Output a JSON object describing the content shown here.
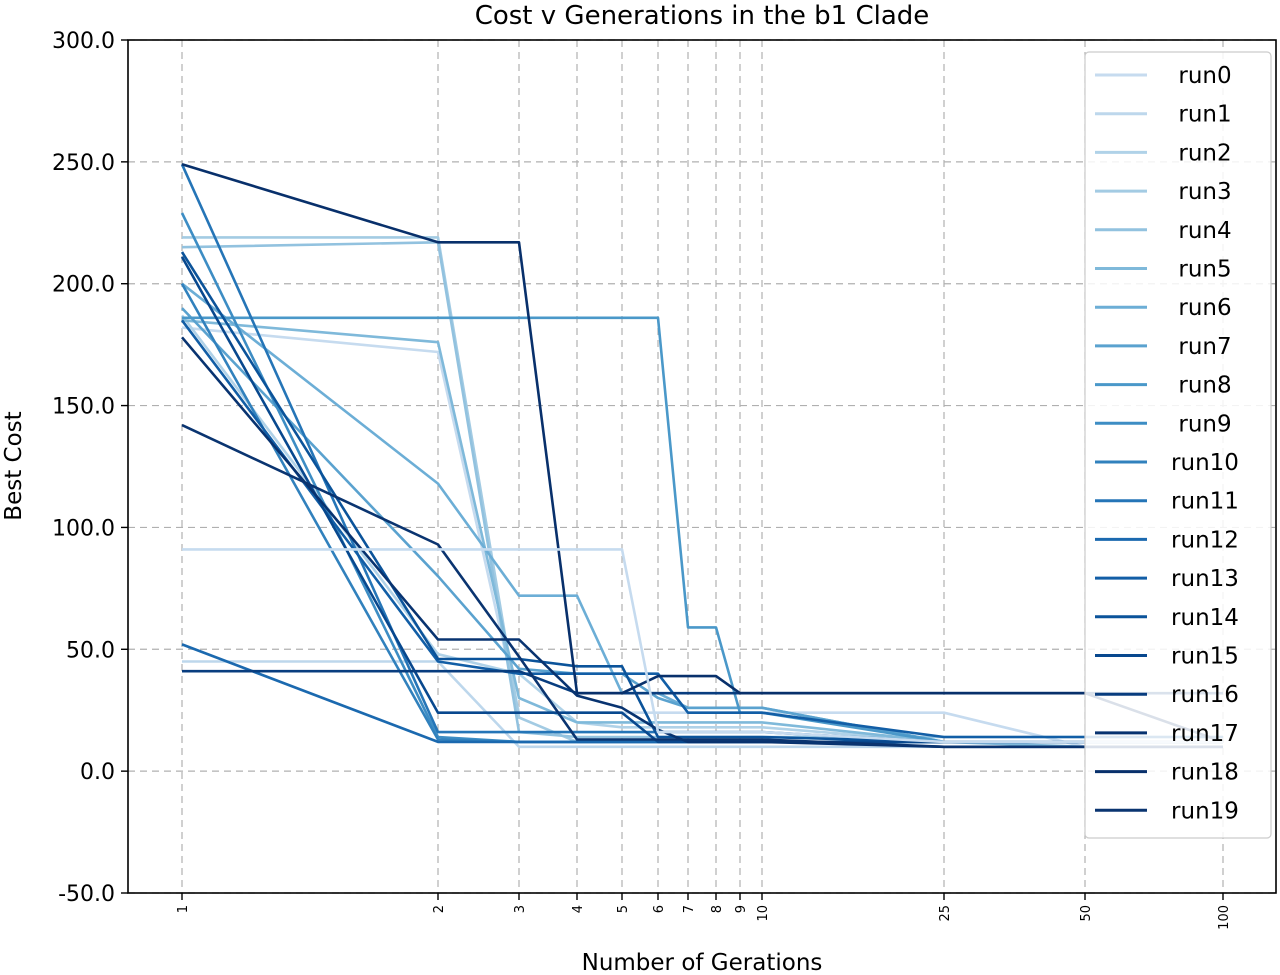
{
  "chart_data": {
    "type": "line",
    "title": "Cost v Generations in the b1 Clade",
    "xlabel": "Number of Gerations",
    "ylabel": "Best Cost",
    "x": [
      1,
      2,
      3,
      4,
      5,
      6,
      7,
      8,
      9,
      10,
      25,
      50,
      100
    ],
    "x_tick_labels": [
      "1",
      "2",
      "3",
      "4",
      "5",
      "6",
      "7",
      "8",
      "9",
      "10",
      "25",
      "50",
      "100"
    ],
    "x_scale": "categorical-index",
    "ylim": [
      -50,
      300
    ],
    "y_ticks": [
      -50,
      0,
      50,
      100,
      150,
      200,
      250,
      300
    ],
    "y_tick_labels": [
      "-50.0",
      "0.0",
      "50.0",
      "100.0",
      "150.0",
      "200.0",
      "250.0",
      "300.0"
    ],
    "grid": true,
    "legend_position": "top-right",
    "colormap": "Blues",
    "colors": [
      "#c6dbef",
      "#bdd7ec",
      "#b0d2e8",
      "#a3cbe3",
      "#92c2df",
      "#7fb9da",
      "#6caed6",
      "#5aa2cf",
      "#4a98c9",
      "#3d8dc4",
      "#3181bd",
      "#2575b7",
      "#1b69af",
      "#125ea6",
      "#0b539a",
      "#08488e",
      "#083d7f",
      "#083370",
      "#08306b",
      "#0a3470"
    ],
    "series": [
      {
        "name": "run0",
        "values": [
          182,
          172,
          24,
          24,
          24,
          24,
          24,
          24,
          24,
          24,
          24,
          10,
          10
        ]
      },
      {
        "name": "run1",
        "values": [
          45,
          45,
          10,
          10,
          10,
          10,
          10,
          10,
          10,
          10,
          10,
          10,
          10
        ]
      },
      {
        "name": "run2",
        "values": [
          187,
          48,
          40,
          20,
          18,
          18,
          18,
          18,
          18,
          18,
          12,
          12,
          12
        ]
      },
      {
        "name": "run3",
        "values": [
          219,
          219,
          22,
          12,
          12,
          12,
          12,
          12,
          12,
          12,
          12,
          12,
          12
        ]
      },
      {
        "name": "run4",
        "values": [
          215,
          217,
          16,
          14,
          14,
          14,
          14,
          14,
          14,
          14,
          14,
          14,
          14
        ]
      },
      {
        "name": "run5",
        "values": [
          185,
          176,
          30,
          20,
          20,
          20,
          20,
          20,
          20,
          20,
          12,
          10,
          10
        ]
      },
      {
        "name": "run6",
        "values": [
          200,
          118,
          72,
          72,
          32,
          32,
          26,
          26,
          26,
          26,
          12,
          12,
          12
        ]
      },
      {
        "name": "run7",
        "values": [
          190,
          80,
          42,
          40,
          40,
          30,
          26,
          26,
          26,
          26,
          12,
          12,
          12
        ]
      },
      {
        "name": "run8",
        "values": [
          186,
          186,
          186,
          186,
          186,
          186,
          59,
          59,
          24,
          24,
          12,
          12,
          12
        ]
      },
      {
        "name": "run9",
        "values": [
          229,
          14,
          12,
          12,
          12,
          12,
          12,
          12,
          12,
          12,
          12,
          12,
          12
        ]
      },
      {
        "name": "run10",
        "values": [
          200,
          13,
          12,
          12,
          12,
          12,
          12,
          12,
          12,
          12,
          12,
          12,
          12
        ]
      },
      {
        "name": "run11",
        "values": [
          249,
          16,
          16,
          16,
          16,
          16,
          16,
          16,
          16,
          16,
          12,
          12,
          12
        ]
      },
      {
        "name": "run12",
        "values": [
          52,
          12,
          12,
          12,
          12,
          12,
          12,
          12,
          12,
          12,
          12,
          12,
          12
        ]
      },
      {
        "name": "run13",
        "values": [
          185,
          45,
          40,
          40,
          40,
          40,
          24,
          24,
          24,
          24,
          14,
          14,
          14
        ]
      },
      {
        "name": "run14",
        "values": [
          213,
          46,
          46,
          43,
          43,
          14,
          14,
          14,
          14,
          14,
          12,
          12,
          12
        ]
      },
      {
        "name": "run15",
        "values": [
          211,
          24,
          24,
          24,
          24,
          12,
          12,
          12,
          12,
          12,
          12,
          12,
          12
        ]
      },
      {
        "name": "run16",
        "values": [
          41,
          41,
          41,
          32,
          32,
          32,
          32,
          32,
          32,
          32,
          32,
          32,
          32
        ]
      },
      {
        "name": "run17",
        "values": [
          178,
          54,
          54,
          31,
          26,
          17,
          12,
          12,
          12,
          12,
          10,
          10,
          10
        ]
      },
      {
        "name": "run18",
        "values": [
          249,
          217,
          217,
          32,
          32,
          39,
          39,
          39,
          32,
          32,
          32,
          32,
          12
        ]
      },
      {
        "name": "run19",
        "values": [
          142,
          93,
          47,
          13,
          13,
          13,
          13,
          13,
          13,
          13,
          10,
          10,
          10
        ]
      },
      {
        "name": "",
        "values": [
          91,
          91,
          91,
          91,
          91,
          16,
          16,
          16,
          16,
          16,
          12,
          12,
          12
        ]
      }
    ]
  }
}
